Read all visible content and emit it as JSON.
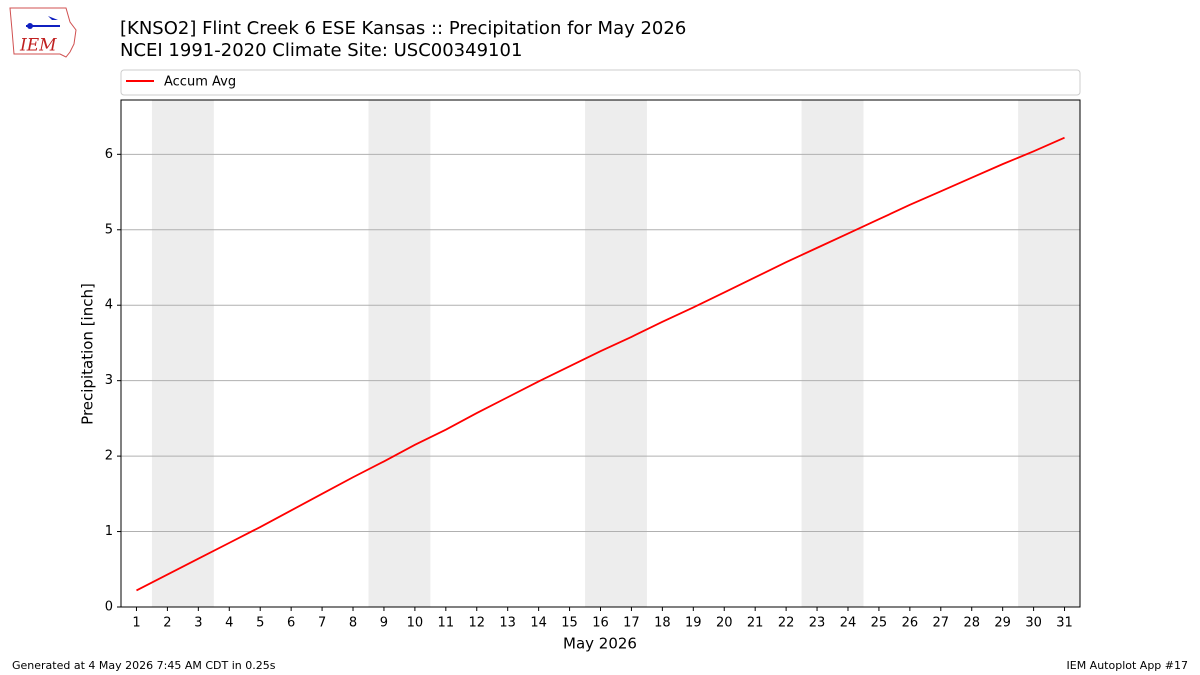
{
  "chart_data": {
    "type": "line",
    "title": "[KNSO2] Flint Creek 6 ESE Kansas :: Precipitation for May 2026",
    "subtitle": "NCEI 1991-2020 Climate Site: USC00349101",
    "x_label": "May 2026",
    "y_label": "Precipitation [inch]",
    "x": [
      1,
      2,
      3,
      4,
      5,
      6,
      7,
      8,
      9,
      10,
      11,
      12,
      13,
      14,
      15,
      16,
      17,
      18,
      19,
      20,
      21,
      22,
      23,
      24,
      25,
      26,
      27,
      28,
      29,
      30,
      31
    ],
    "series": [
      {
        "name": "Accum Avg",
        "color": "#ff0000",
        "values": [
          0.22,
          0.43,
          0.64,
          0.85,
          1.06,
          1.28,
          1.5,
          1.72,
          1.93,
          2.15,
          2.35,
          2.57,
          2.78,
          2.99,
          3.19,
          3.39,
          3.58,
          3.78,
          3.97,
          4.17,
          4.37,
          4.57,
          4.76,
          4.95,
          5.14,
          5.33,
          5.51,
          5.69,
          5.87,
          6.04,
          6.22
        ]
      }
    ],
    "xlim": [
      0.5,
      31.5
    ],
    "ylim": [
      0,
      6.72
    ],
    "xticks": [
      1,
      2,
      3,
      4,
      5,
      6,
      7,
      8,
      9,
      10,
      11,
      12,
      13,
      14,
      15,
      16,
      17,
      18,
      19,
      20,
      21,
      22,
      23,
      24,
      25,
      26,
      27,
      28,
      29,
      30,
      31
    ],
    "yticks": [
      0,
      1,
      2,
      3,
      4,
      5,
      6
    ],
    "grid": true,
    "legend": "top",
    "weekend_spans": [
      [
        1.5,
        3.5
      ],
      [
        8.5,
        10.5
      ],
      [
        15.5,
        17.5
      ],
      [
        22.5,
        24.5
      ],
      [
        29.5,
        31.5
      ]
    ],
    "shade_color": "#ededed"
  },
  "footer": {
    "left": "Generated at 4 May 2026 7:45 AM CDT in 0.25s",
    "right": "IEM Autoplot App #17"
  },
  "logo": {
    "text": "IEM"
  }
}
